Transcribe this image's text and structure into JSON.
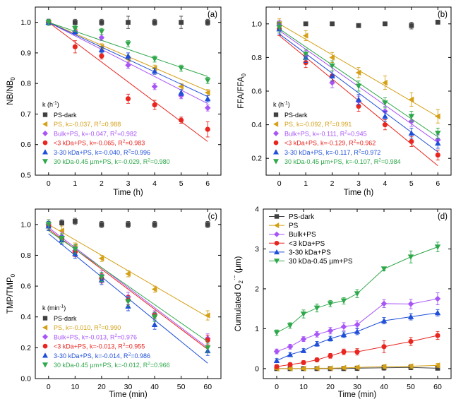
{
  "colors": {
    "black": "#404040",
    "orange": "#d4a017",
    "purple": "#a855f7",
    "red": "#e8251f",
    "blue": "#1f4fd8",
    "green": "#2ea84a"
  },
  "chart_data": [
    {
      "type": "scatter",
      "panel_label": "(a)",
      "xlabel": "Time (h)",
      "ylabel_main": "NB/NB",
      "ylabel_sub": "0",
      "xlim": [
        -0.5,
        6.5
      ],
      "ylim": [
        0.5,
        1.05
      ],
      "xticks": [
        0,
        1,
        2,
        3,
        4,
        5,
        6
      ],
      "yticks": [
        0.5,
        0.6,
        0.7,
        0.8,
        0.9,
        1.0
      ],
      "ytick_labels": [
        "0.5",
        "0.6",
        "0.7",
        "0.8",
        "0.9",
        "1.0"
      ],
      "legend_title": "k (h",
      "legend_title_sup": "-1",
      "legend_title_end": ")",
      "series": [
        {
          "name": "PS-dark",
          "prefix": "PS-dark",
          "r2": "",
          "marker": "square",
          "color": "black",
          "x": [
            0,
            1,
            2,
            3,
            4,
            5,
            6
          ],
          "y": [
            1.0,
            1.0,
            1.0,
            1.0,
            1.0,
            1.0,
            1.0
          ],
          "err": [
            0.01,
            0.01,
            0.01,
            0.02,
            0.01,
            0.02,
            0.01
          ],
          "fit": null
        },
        {
          "name": "PS",
          "prefix": "PS, k=-0.037, R",
          "r2": "=0.988",
          "marker": "tri-left",
          "color": "orange",
          "x": [
            0,
            1,
            2,
            3,
            4,
            5,
            6
          ],
          "y": [
            1.0,
            0.97,
            0.92,
            0.88,
            0.85,
            0.79,
            0.77
          ],
          "err": [
            0.01,
            0.01,
            0.01,
            0.01,
            0.01,
            0.01,
            0.01
          ],
          "fit": [
            1.0,
            0.776
          ]
        },
        {
          "name": "Bulk+PS",
          "prefix": "Bulk+PS, k=-0.047, R",
          "r2": "=0.982",
          "marker": "diamond",
          "color": "purple",
          "x": [
            0,
            1,
            2,
            3,
            4,
            5,
            6
          ],
          "y": [
            1.0,
            0.97,
            0.95,
            0.86,
            0.79,
            0.76,
            0.72
          ],
          "err": [
            0.01,
            0.01,
            0.01,
            0.01,
            0.01,
            0.01,
            0.01
          ],
          "fit": [
            1.0,
            0.734
          ]
        },
        {
          "name": "<3 kDa+PS",
          "prefix": "<3 kDa+PS, k=-0.065, R",
          "r2": "=0.983",
          "marker": "circle",
          "color": "red",
          "x": [
            0,
            1,
            2,
            3,
            4,
            5,
            6
          ],
          "y": [
            1.0,
            0.92,
            0.89,
            0.75,
            0.73,
            0.68,
            0.65
          ],
          "err": [
            0.01,
            0.02,
            0.01,
            0.015,
            0.015,
            0.01,
            0.025
          ],
          "fit": [
            1.0,
            0.61
          ]
        },
        {
          "name": "3-30 kDa+PS",
          "prefix": "3-30 kDa+PS, k=-0.040, R",
          "r2": "=0.996",
          "marker": "tri-up",
          "color": "blue",
          "x": [
            0,
            1,
            2,
            3,
            4,
            5,
            6
          ],
          "y": [
            1.0,
            0.97,
            0.91,
            0.89,
            0.84,
            0.77,
            0.75
          ],
          "err": [
            0.01,
            0.01,
            0.01,
            0.01,
            0.01,
            0.01,
            0.01
          ],
          "fit": [
            1.0,
            0.757
          ]
        },
        {
          "name": "30 kDa-0.45 µm+PS",
          "prefix": "30 kDa-0.45 µm+PS, k=-0.029, R",
          "r2": "=0.980",
          "marker": "tri-down",
          "color": "green",
          "x": [
            0,
            1,
            2,
            3,
            4,
            5,
            6
          ],
          "y": [
            1.0,
            0.98,
            0.97,
            0.93,
            0.88,
            0.85,
            0.81
          ],
          "err": [
            0.01,
            0.01,
            0.01,
            0.01,
            0.01,
            0.01,
            0.01
          ],
          "fit": [
            1.0,
            0.823
          ]
        }
      ]
    },
    {
      "type": "scatter",
      "panel_label": "(b)",
      "xlabel": "Time (h)",
      "ylabel_main": "FFA/FFA",
      "ylabel_sub": "0",
      "xlim": [
        -0.5,
        6.5
      ],
      "ylim": [
        0.1,
        1.1
      ],
      "xticks": [
        0,
        1,
        2,
        3,
        4,
        5,
        6
      ],
      "yticks": [
        0.2,
        0.4,
        0.6,
        0.8,
        1.0
      ],
      "ytick_labels": [
        "0.2",
        "0.4",
        "0.6",
        "0.8",
        "1.0"
      ],
      "legend_title": "k (h",
      "legend_title_sup": "-1",
      "legend_title_end": ")",
      "series": [
        {
          "name": "PS-dark",
          "prefix": "PS-dark",
          "r2": "",
          "marker": "square",
          "color": "black",
          "x": [
            0,
            1,
            2,
            3,
            4,
            5,
            6
          ],
          "y": [
            1.0,
            1.0,
            1.0,
            0.99,
            1.0,
            0.99,
            1.01
          ],
          "err": [
            0.02,
            0.01,
            0.01,
            0.01,
            0.01,
            0.02,
            0.01
          ],
          "fit": null
        },
        {
          "name": "PS",
          "prefix": "PS, k=-0.092, R",
          "r2": "=0.991",
          "marker": "tri-left",
          "color": "orange",
          "x": [
            0,
            1,
            2,
            3,
            4,
            5,
            6
          ],
          "y": [
            1.0,
            0.93,
            0.8,
            0.71,
            0.65,
            0.55,
            0.45
          ],
          "err": [
            0.03,
            0.03,
            0.03,
            0.03,
            0.04,
            0.04,
            0.04
          ],
          "fit": [
            1.0,
            0.448
          ]
        },
        {
          "name": "Bulk+PS",
          "prefix": "Bulk+PS, k=-0.111, R",
          "r2": "=0.945",
          "marker": "diamond",
          "color": "purple",
          "x": [
            0,
            1,
            2,
            3,
            4,
            5,
            6
          ],
          "y": [
            0.99,
            0.81,
            0.65,
            0.54,
            0.48,
            0.42,
            0.31
          ],
          "err": [
            0.03,
            0.03,
            0.03,
            0.03,
            0.03,
            0.03,
            0.03
          ],
          "fit": [
            0.96,
            0.294
          ]
        },
        {
          "name": "<3 kDa+PS",
          "prefix": "<3 kDa+PS, k=-0.129, R",
          "r2": "=0.962",
          "marker": "circle",
          "color": "red",
          "x": [
            0,
            1,
            2,
            3,
            4,
            5,
            6
          ],
          "y": [
            0.97,
            0.77,
            0.69,
            0.51,
            0.4,
            0.3,
            0.22
          ],
          "err": [
            0.04,
            0.03,
            0.03,
            0.03,
            0.03,
            0.03,
            0.03
          ],
          "fit": [
            0.93,
            0.156
          ]
        },
        {
          "name": "3-30 kDa+PS",
          "prefix": "3-30 kDa+PS, k=-0.117, R",
          "r2": "=0.972",
          "marker": "tri-up",
          "color": "blue",
          "x": [
            0,
            1,
            2,
            3,
            4,
            5,
            6
          ],
          "y": [
            0.97,
            0.8,
            0.69,
            0.55,
            0.45,
            0.35,
            0.29
          ],
          "err": [
            0.03,
            0.03,
            0.03,
            0.03,
            0.03,
            0.03,
            0.03
          ],
          "fit": [
            0.94,
            0.238
          ]
        },
        {
          "name": "30 kDa-0.45 µm+PS",
          "prefix": "30 kDa-0.45 µm+PS, k=-0.107, R",
          "r2": "=0.984",
          "marker": "tri-down",
          "color": "green",
          "x": [
            0,
            1,
            2,
            3,
            4,
            5,
            6
          ],
          "y": [
            0.98,
            0.82,
            0.75,
            0.63,
            0.53,
            0.45,
            0.35
          ],
          "err": [
            0.03,
            0.03,
            0.03,
            0.03,
            0.03,
            0.03,
            0.03
          ],
          "fit": [
            0.97,
            0.328
          ]
        }
      ]
    },
    {
      "type": "scatter",
      "panel_label": "(c)",
      "xlabel": "Time (min)",
      "ylabel_main": "TMP/TMP",
      "ylabel_sub": "0",
      "xlim": [
        -5,
        65
      ],
      "ylim": [
        0.0,
        1.1
      ],
      "xticks": [
        0,
        10,
        20,
        30,
        40,
        50,
        60
      ],
      "yticks": [
        0.0,
        0.2,
        0.4,
        0.6,
        0.8,
        1.0
      ],
      "ytick_labels": [
        "0.0",
        "0.2",
        "0.4",
        "0.6",
        "0.8",
        "1.0"
      ],
      "legend_title": "k (min",
      "legend_title_sup": "-1",
      "legend_title_end": ")",
      "series": [
        {
          "name": "PS-dark",
          "prefix": "PS-dark",
          "r2": "",
          "marker": "square",
          "color": "black",
          "x": [
            0,
            5,
            10,
            20,
            30,
            40,
            60
          ],
          "y": [
            1.0,
            1.01,
            1.02,
            1.0,
            1.0,
            1.0,
            1.0
          ],
          "err": [
            0.02,
            0.02,
            0.02,
            0.02,
            0.02,
            0.02,
            0.02
          ],
          "fit": null
        },
        {
          "name": "PS",
          "prefix": "PS, k=-0.010, R",
          "r2": "=0.990",
          "marker": "tri-left",
          "color": "orange",
          "x": [
            0,
            5,
            10,
            20,
            30,
            40,
            60
          ],
          "y": [
            1.0,
            0.96,
            0.86,
            0.78,
            0.68,
            0.58,
            0.41
          ],
          "err": [
            0.03,
            0.03,
            0.02,
            0.02,
            0.02,
            0.02,
            0.03
          ],
          "fit": [
            1.0,
            0.4
          ]
        },
        {
          "name": "Bulk+PS",
          "prefix": "Bulk+PS, k=-0.013, R",
          "r2": "=0.976",
          "marker": "diamond",
          "color": "purple",
          "x": [
            0,
            5,
            10,
            20,
            30,
            40,
            60
          ],
          "y": [
            1.0,
            0.92,
            0.83,
            0.67,
            0.53,
            0.42,
            0.26
          ],
          "err": [
            0.03,
            0.03,
            0.03,
            0.03,
            0.03,
            0.02,
            0.03
          ],
          "fit": [
            0.98,
            0.2
          ]
        },
        {
          "name": "<3 kDa+PS",
          "prefix": "<3 kDa+PS, k=-0.013, R",
          "r2": "=0.955",
          "marker": "circle",
          "color": "red",
          "x": [
            0,
            5,
            10,
            20,
            30,
            40,
            60
          ],
          "y": [
            0.99,
            0.91,
            0.82,
            0.65,
            0.51,
            0.41,
            0.25
          ],
          "err": [
            0.03,
            0.03,
            0.03,
            0.03,
            0.03,
            0.02,
            0.03
          ],
          "fit": [
            0.97,
            0.19
          ]
        },
        {
          "name": "3-30 kDa+PS",
          "prefix": "3-30 kDa+PS, k=-0.014, R",
          "r2": "=0.986",
          "marker": "tri-up",
          "color": "blue",
          "x": [
            0,
            5,
            10,
            20,
            30,
            40,
            60
          ],
          "y": [
            0.99,
            0.9,
            0.81,
            0.64,
            0.47,
            0.35,
            0.18
          ],
          "err": [
            0.03,
            0.03,
            0.03,
            0.03,
            0.03,
            0.03,
            0.03
          ],
          "fit": [
            0.94,
            0.1
          ]
        },
        {
          "name": "30 kDa-0.45 µm+PS",
          "prefix": "30 kDa-0.45 µm+PS, k=-0.012, R",
          "r2": "=0.966",
          "marker": "tri-down",
          "color": "green",
          "x": [
            0,
            5,
            10,
            20,
            30,
            40,
            60
          ],
          "y": [
            1.0,
            0.91,
            0.84,
            0.66,
            0.5,
            0.4,
            0.2
          ],
          "err": [
            0.03,
            0.03,
            0.03,
            0.03,
            0.03,
            0.03,
            0.03
          ],
          "fit": [
            0.96,
            0.24
          ]
        }
      ]
    },
    {
      "type": "line",
      "panel_label": "(d)",
      "xlabel": "Time (min)",
      "ylabel_main": "Cumulated O",
      "ylabel_sub": "2",
      "ylabel_sup": "·−",
      "ylabel_end": " (μm)",
      "xlim": [
        -5,
        65
      ],
      "ylim": [
        -0.25,
        4.0
      ],
      "xticks": [
        0,
        10,
        20,
        30,
        40,
        50,
        60
      ],
      "yticks": [
        0,
        1,
        2,
        3,
        4
      ],
      "ytick_labels": [
        "0",
        "1",
        "2",
        "3",
        "4"
      ],
      "series": [
        {
          "name": "PS-dark",
          "marker": "square",
          "color": "black",
          "x": [
            0,
            5,
            10,
            15,
            20,
            25,
            30,
            40,
            50,
            60
          ],
          "y": [
            0.0,
            0.0,
            0.0,
            0.0,
            0.0,
            0.0,
            0.01,
            0.02,
            0.03,
            0.01
          ],
          "err": [
            0.03,
            0.03,
            0.03,
            0.03,
            0.03,
            0.04,
            0.06,
            0.06,
            0.06,
            0.05
          ]
        },
        {
          "name": "PS",
          "marker": "tri-left",
          "color": "orange",
          "x": [
            0,
            5,
            10,
            15,
            20,
            25,
            30,
            40,
            50,
            60
          ],
          "y": [
            0.0,
            0.0,
            0.0,
            0.01,
            0.01,
            0.02,
            0.03,
            0.05,
            0.06,
            0.08
          ],
          "err": [
            0.03,
            0.03,
            0.03,
            0.03,
            0.03,
            0.04,
            0.04,
            0.05,
            0.05,
            0.05
          ]
        },
        {
          "name": "Bulk+PS",
          "marker": "diamond",
          "color": "purple",
          "x": [
            0,
            5,
            10,
            15,
            20,
            25,
            30,
            40,
            50,
            60
          ],
          "y": [
            0.43,
            0.55,
            0.74,
            0.86,
            0.95,
            1.05,
            1.1,
            1.63,
            1.62,
            1.75
          ],
          "err": [
            0.06,
            0.06,
            0.06,
            0.07,
            0.08,
            0.1,
            0.1,
            0.1,
            0.12,
            0.15
          ]
        },
        {
          "name": "<3 kDa+PS",
          "marker": "circle",
          "color": "red",
          "x": [
            0,
            5,
            10,
            15,
            20,
            25,
            30,
            40,
            50,
            60
          ],
          "y": [
            0.05,
            0.1,
            0.15,
            0.22,
            0.32,
            0.42,
            0.42,
            0.55,
            0.68,
            0.83
          ],
          "err": [
            0.05,
            0.05,
            0.05,
            0.05,
            0.06,
            0.07,
            0.08,
            0.15,
            0.1,
            0.1
          ]
        },
        {
          "name": "3-30 kDa+PS",
          "marker": "tri-up",
          "color": "blue",
          "x": [
            0,
            5,
            10,
            15,
            20,
            25,
            30,
            40,
            50,
            60
          ],
          "y": [
            0.2,
            0.35,
            0.45,
            0.62,
            0.75,
            0.85,
            0.93,
            1.2,
            1.3,
            1.4
          ],
          "err": [
            0.05,
            0.05,
            0.05,
            0.06,
            0.06,
            0.07,
            0.08,
            0.08,
            0.08,
            0.08
          ]
        },
        {
          "name": "30 kDa-0.45 µm+PS",
          "marker": "tri-down",
          "color": "green",
          "x": [
            0,
            5,
            10,
            15,
            20,
            25,
            30,
            40,
            50,
            60
          ],
          "y": [
            0.9,
            1.08,
            1.37,
            1.52,
            1.63,
            1.7,
            1.88,
            2.5,
            2.8,
            3.05
          ],
          "err": [
            0.07,
            0.07,
            0.1,
            0.1,
            0.08,
            0.08,
            0.1,
            0.05,
            0.15,
            0.12
          ]
        }
      ]
    }
  ]
}
